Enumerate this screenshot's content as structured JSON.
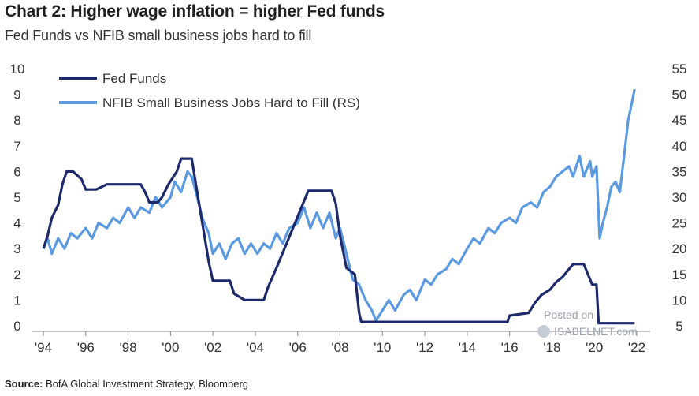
{
  "title": "Chart 2: Higher wage inflation = higher Fed funds",
  "subtitle": "Fed Funds vs NFIB small business jobs hard to fill",
  "source_label": "Source:",
  "source_text": "BofA Global Investment Strategy, Bloomberg",
  "watermark": {
    "line1": "Posted on",
    "line2": "ISABELNET.com"
  },
  "colors": {
    "fed_funds": "#1c2a6b",
    "nfib": "#5b9ae0",
    "axis": "#888888"
  },
  "chart_data": {
    "type": "line",
    "x_ticks": [
      "'94",
      "'96",
      "'98",
      "'00",
      "'02",
      "'04",
      "'06",
      "'08",
      "'10",
      "'12",
      "'14",
      "'16",
      "'18",
      "'20",
      "'22"
    ],
    "x_range": [
      1994,
      2022
    ],
    "left_axis": {
      "ticks": [
        "0",
        "1",
        "2",
        "3",
        "4",
        "5",
        "6",
        "7",
        "8",
        "9",
        "10"
      ],
      "range": [
        0,
        10
      ]
    },
    "right_axis": {
      "ticks": [
        "5",
        "10",
        "15",
        "20",
        "25",
        "30",
        "35",
        "40",
        "45",
        "50",
        "55"
      ],
      "range": [
        5,
        55
      ]
    },
    "series": [
      {
        "name": "Fed Funds",
        "axis": "left",
        "points": [
          [
            1994.0,
            3.0
          ],
          [
            1994.2,
            3.5
          ],
          [
            1994.4,
            4.2
          ],
          [
            1994.7,
            4.7
          ],
          [
            1994.9,
            5.5
          ],
          [
            1995.1,
            6.0
          ],
          [
            1995.4,
            6.0
          ],
          [
            1995.8,
            5.7
          ],
          [
            1996.0,
            5.3
          ],
          [
            1996.5,
            5.3
          ],
          [
            1997.0,
            5.5
          ],
          [
            1997.5,
            5.5
          ],
          [
            1998.0,
            5.5
          ],
          [
            1998.6,
            5.5
          ],
          [
            1998.8,
            5.2
          ],
          [
            1999.0,
            4.8
          ],
          [
            1999.4,
            4.8
          ],
          [
            1999.6,
            5.0
          ],
          [
            1999.9,
            5.5
          ],
          [
            2000.3,
            6.0
          ],
          [
            2000.5,
            6.5
          ],
          [
            2001.0,
            6.5
          ],
          [
            2001.2,
            5.5
          ],
          [
            2001.5,
            4.0
          ],
          [
            2001.8,
            2.5
          ],
          [
            2002.0,
            1.75
          ],
          [
            2002.8,
            1.75
          ],
          [
            2003.0,
            1.25
          ],
          [
            2003.5,
            1.0
          ],
          [
            2004.4,
            1.0
          ],
          [
            2004.6,
            1.5
          ],
          [
            2005.0,
            2.25
          ],
          [
            2005.5,
            3.25
          ],
          [
            2006.0,
            4.25
          ],
          [
            2006.5,
            5.25
          ],
          [
            2007.6,
            5.25
          ],
          [
            2007.8,
            4.75
          ],
          [
            2008.0,
            3.5
          ],
          [
            2008.3,
            2.25
          ],
          [
            2008.7,
            2.0
          ],
          [
            2008.9,
            0.5
          ],
          [
            2009.0,
            0.15
          ],
          [
            2015.9,
            0.15
          ],
          [
            2016.0,
            0.4
          ],
          [
            2016.9,
            0.5
          ],
          [
            2017.2,
            0.9
          ],
          [
            2017.5,
            1.2
          ],
          [
            2017.9,
            1.4
          ],
          [
            2018.2,
            1.7
          ],
          [
            2018.5,
            1.9
          ],
          [
            2018.8,
            2.2
          ],
          [
            2019.0,
            2.4
          ],
          [
            2019.5,
            2.4
          ],
          [
            2019.7,
            2.0
          ],
          [
            2019.9,
            1.6
          ],
          [
            2020.1,
            1.6
          ],
          [
            2020.2,
            0.1
          ],
          [
            2021.9,
            0.1
          ]
        ]
      },
      {
        "name": "NFIB Small Business Jobs Hard to Fill (RS)",
        "axis": "right",
        "points": [
          [
            1994.0,
            20
          ],
          [
            1994.2,
            22
          ],
          [
            1994.4,
            19
          ],
          [
            1994.7,
            22
          ],
          [
            1995.0,
            20
          ],
          [
            1995.3,
            23
          ],
          [
            1995.6,
            22
          ],
          [
            1996.0,
            24
          ],
          [
            1996.3,
            22
          ],
          [
            1996.6,
            25
          ],
          [
            1997.0,
            24
          ],
          [
            1997.3,
            26
          ],
          [
            1997.6,
            25
          ],
          [
            1998.0,
            28
          ],
          [
            1998.3,
            26
          ],
          [
            1998.6,
            28
          ],
          [
            1999.0,
            27
          ],
          [
            1999.3,
            30
          ],
          [
            1999.6,
            28
          ],
          [
            2000.0,
            30
          ],
          [
            2000.2,
            33
          ],
          [
            2000.5,
            31
          ],
          [
            2000.8,
            35
          ],
          [
            2001.0,
            34
          ],
          [
            2001.2,
            31
          ],
          [
            2001.5,
            26
          ],
          [
            2001.8,
            23
          ],
          [
            2002.0,
            19
          ],
          [
            2002.3,
            21
          ],
          [
            2002.6,
            18
          ],
          [
            2002.9,
            21
          ],
          [
            2003.2,
            22
          ],
          [
            2003.5,
            19
          ],
          [
            2003.8,
            21
          ],
          [
            2004.1,
            19
          ],
          [
            2004.4,
            21
          ],
          [
            2004.7,
            20
          ],
          [
            2005.0,
            23
          ],
          [
            2005.3,
            21
          ],
          [
            2005.6,
            24
          ],
          [
            2006.0,
            25
          ],
          [
            2006.3,
            28
          ],
          [
            2006.6,
            24
          ],
          [
            2006.9,
            27
          ],
          [
            2007.2,
            24
          ],
          [
            2007.5,
            27
          ],
          [
            2007.8,
            22
          ],
          [
            2008.0,
            24
          ],
          [
            2008.3,
            19
          ],
          [
            2008.6,
            14
          ],
          [
            2008.9,
            13
          ],
          [
            2009.2,
            10
          ],
          [
            2009.5,
            8
          ],
          [
            2009.7,
            6
          ],
          [
            2010.0,
            8
          ],
          [
            2010.3,
            10
          ],
          [
            2010.6,
            8
          ],
          [
            2011.0,
            11
          ],
          [
            2011.3,
            12
          ],
          [
            2011.6,
            10
          ],
          [
            2012.0,
            14
          ],
          [
            2012.3,
            13
          ],
          [
            2012.6,
            15
          ],
          [
            2013.0,
            16
          ],
          [
            2013.3,
            18
          ],
          [
            2013.6,
            17
          ],
          [
            2014.0,
            20
          ],
          [
            2014.3,
            22
          ],
          [
            2014.6,
            21
          ],
          [
            2015.0,
            24
          ],
          [
            2015.3,
            23
          ],
          [
            2015.6,
            25
          ],
          [
            2016.0,
            26
          ],
          [
            2016.3,
            25
          ],
          [
            2016.6,
            28
          ],
          [
            2017.0,
            29
          ],
          [
            2017.3,
            28
          ],
          [
            2017.6,
            31
          ],
          [
            2017.9,
            32
          ],
          [
            2018.2,
            34
          ],
          [
            2018.5,
            35
          ],
          [
            2018.8,
            36
          ],
          [
            2019.0,
            34
          ],
          [
            2019.3,
            38
          ],
          [
            2019.5,
            34
          ],
          [
            2019.8,
            37
          ],
          [
            2019.9,
            34
          ],
          [
            2020.1,
            36
          ],
          [
            2020.25,
            22
          ],
          [
            2020.4,
            25
          ],
          [
            2020.6,
            28
          ],
          [
            2020.8,
            32
          ],
          [
            2021.0,
            33
          ],
          [
            2021.2,
            31
          ],
          [
            2021.4,
            38
          ],
          [
            2021.6,
            45
          ],
          [
            2021.75,
            48
          ],
          [
            2021.9,
            51
          ]
        ]
      }
    ],
    "legend_position": "top-left",
    "grid": false
  }
}
